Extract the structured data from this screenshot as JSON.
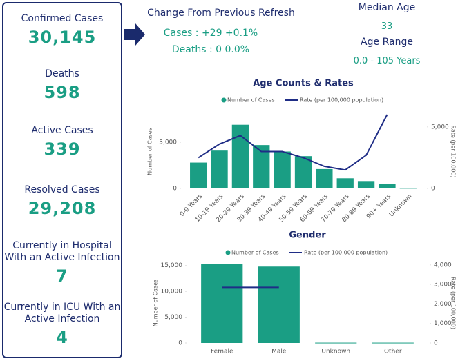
{
  "panel": {
    "items": [
      {
        "label": "Confirmed Cases",
        "value": "30,145"
      },
      {
        "label": "Deaths",
        "value": "598"
      },
      {
        "label": "Active Cases",
        "value": "339"
      },
      {
        "label": "Resolved Cases",
        "value": "29,208"
      },
      {
        "label": "Currently in Hospital With an Active Infection",
        "value": "7"
      },
      {
        "label": "Currently in ICU With an Active Infection",
        "value": "4"
      }
    ]
  },
  "change": {
    "title": "Change From Previous Refresh",
    "cases": "Cases : +29 +0.1%",
    "deaths": "Deaths : 0 0.0%"
  },
  "age": {
    "median_label": "Median Age",
    "median": "33",
    "range_label": "Age Range",
    "range": "0.0 - 105 Years"
  },
  "chart_data": [
    {
      "type": "bar",
      "title": "Age Counts & Rates",
      "ylabel": "Number of Cases",
      "y2label": "Rate (per 100,000)",
      "categories": [
        "0-9 Years",
        "10-19 Years",
        "20-29 Years",
        "30-39 Years",
        "40-49 Years",
        "50-59 Years",
        "60-69 Years",
        "70-79 Years",
        "80-89 Years",
        "90+ Years",
        "Unknown"
      ],
      "series": [
        {
          "name": "Number of Cases",
          "type": "bar",
          "color": "#1a9e84",
          "values": [
            2800,
            4100,
            6900,
            4700,
            4000,
            3500,
            2100,
            1100,
            800,
            500,
            50
          ]
        },
        {
          "name": "Rate (per 100,000 population)",
          "type": "line",
          "axis": "y2",
          "color": "#1f2d86",
          "values": [
            2500,
            3600,
            4300,
            3000,
            3000,
            2500,
            1800,
            1500,
            2700,
            6000,
            null
          ]
        }
      ],
      "ylim": [
        0,
        8000
      ],
      "yticks": [
        0,
        {
          "value": 5000,
          "label": "5,000"
        }
      ],
      "y2lim": [
        0,
        6000
      ],
      "y2ticks": [
        0,
        {
          "value": 5000,
          "label": "5,000"
        }
      ]
    },
    {
      "type": "bar",
      "title": "Gender",
      "ylabel": "Number of Cases",
      "y2label": "Rate (per 100,000)",
      "categories": [
        "Female",
        "Male",
        "Unknown",
        "Other"
      ],
      "series": [
        {
          "name": "Number of Cases",
          "type": "bar",
          "color": "#1a9e84",
          "values": [
            15300,
            14800,
            60,
            60
          ]
        },
        {
          "name": "Rate (per 100,000 population)",
          "type": "line",
          "axis": "y2",
          "color": "#1f2d86",
          "values": [
            2850,
            2850,
            null,
            null
          ]
        }
      ],
      "ylim": [
        0,
        15500
      ],
      "yticks": [
        0,
        {
          "value": 5000,
          "label": "5,000"
        },
        {
          "value": 10000,
          "label": "10,000"
        },
        {
          "value": 15000,
          "label": "15,000"
        }
      ],
      "y2lim": [
        0,
        4100
      ],
      "y2ticks": [
        0,
        {
          "value": 1000,
          "label": "1,000"
        },
        {
          "value": 2000,
          "label": "2,000"
        },
        {
          "value": 3000,
          "label": "3,000"
        },
        {
          "value": 4000,
          "label": "4,000"
        }
      ]
    }
  ]
}
